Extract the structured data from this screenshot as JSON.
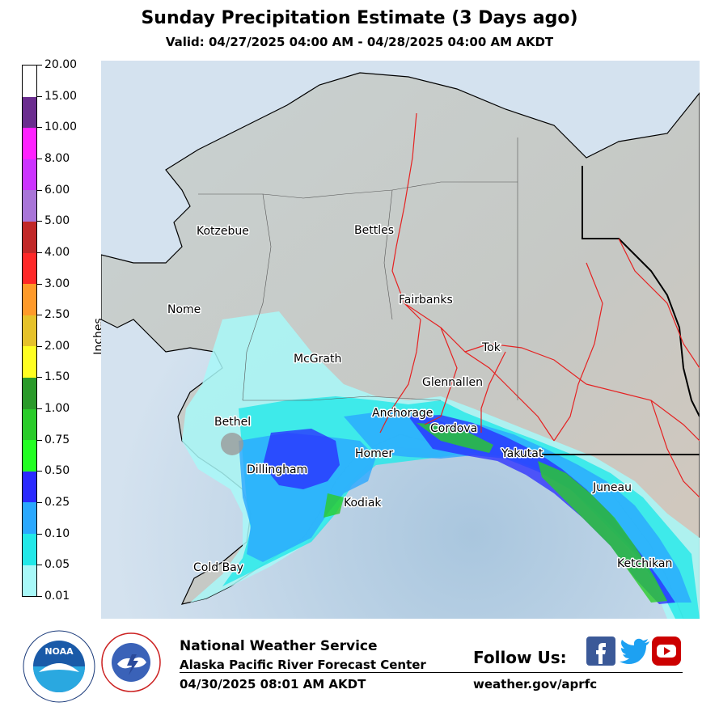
{
  "title": "Sunday Precipitation Estimate (3 Days ago)",
  "subtitle": "Valid: 04/27/2025 04:00 AM - 04/28/2025 04:00 AM AKDT",
  "colorbar": {
    "label": "Inches",
    "ticks": [
      "20.00",
      "15.00",
      "10.00",
      "8.00",
      "6.00",
      "5.00",
      "4.00",
      "3.00",
      "2.50",
      "2.00",
      "1.50",
      "1.00",
      "0.75",
      "0.50",
      "0.25",
      "0.10",
      "0.05",
      "0.01"
    ],
    "colors_top_to_bottom": [
      "#ffffff",
      "#6b2d8f",
      "#ff22ff",
      "#cc33ff",
      "#a875d8",
      "#c12828",
      "#ff2828",
      "#ff9a2a",
      "#e6c22a",
      "#ffff22",
      "#2a9a2a",
      "#2acc2a",
      "#22ff22",
      "#2a2aff",
      "#2aa8ff",
      "#22e8e8",
      "#a8f8f8"
    ]
  },
  "map": {
    "cities": [
      "Kotzebue",
      "Bettles",
      "Nome",
      "Fairbanks",
      "McGrath",
      "Tok",
      "Glennallen",
      "Bethel",
      "Anchorage",
      "Cordova",
      "Dillingham",
      "Homer",
      "Yakutat",
      "Juneau",
      "Kodiak",
      "Cold Bay",
      "Ketchikan"
    ]
  },
  "footer": {
    "org_name": "National Weather Service",
    "office_name": "Alaska Pacific River Forecast Center",
    "timestamp": "04/30/2025 08:01 AM AKDT",
    "follow_label": "Follow Us:",
    "website": "weather.gov/aprfc",
    "noaa_logo_text": "NOAA",
    "nws_logo_text": "NATIONAL WEATHER SERVICE",
    "noaa_ring_text": "NATIONAL OCEANIC AND ATMOSPHERIC ADMINISTRATION"
  },
  "social": {
    "facebook_icon": "facebook-icon",
    "twitter_icon": "twitter-icon",
    "youtube_icon": "youtube-icon",
    "facebook_color": "#3b5998",
    "twitter_color": "#1da1f2",
    "youtube_color": "#cc0000"
  }
}
